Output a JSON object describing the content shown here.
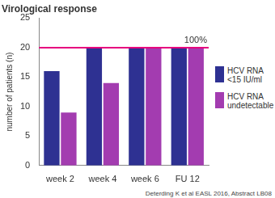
{
  "chart_data": {
    "type": "bar",
    "title": "Virological response",
    "y_label": "number of patients (n)",
    "categories": [
      "week 2",
      "week 4",
      "week 6",
      "FU 12"
    ],
    "series": [
      {
        "name": "HCV RNA <15 IU/ml",
        "color": "#2e3192",
        "values": [
          16,
          20,
          20,
          20
        ]
      },
      {
        "name": "HCV RNA undetectable",
        "color": "#a33cb0",
        "values": [
          9,
          14,
          20,
          20
        ]
      }
    ],
    "ylim": [
      0,
      25
    ],
    "yticks": [
      0,
      5,
      10,
      15,
      20,
      25
    ],
    "grid": false,
    "legend": "right",
    "reference_line": {
      "value": 20,
      "label": "100%",
      "color": "#e6007e"
    },
    "source": "Deterding K et al EASL 2016, Abstract LB08"
  }
}
